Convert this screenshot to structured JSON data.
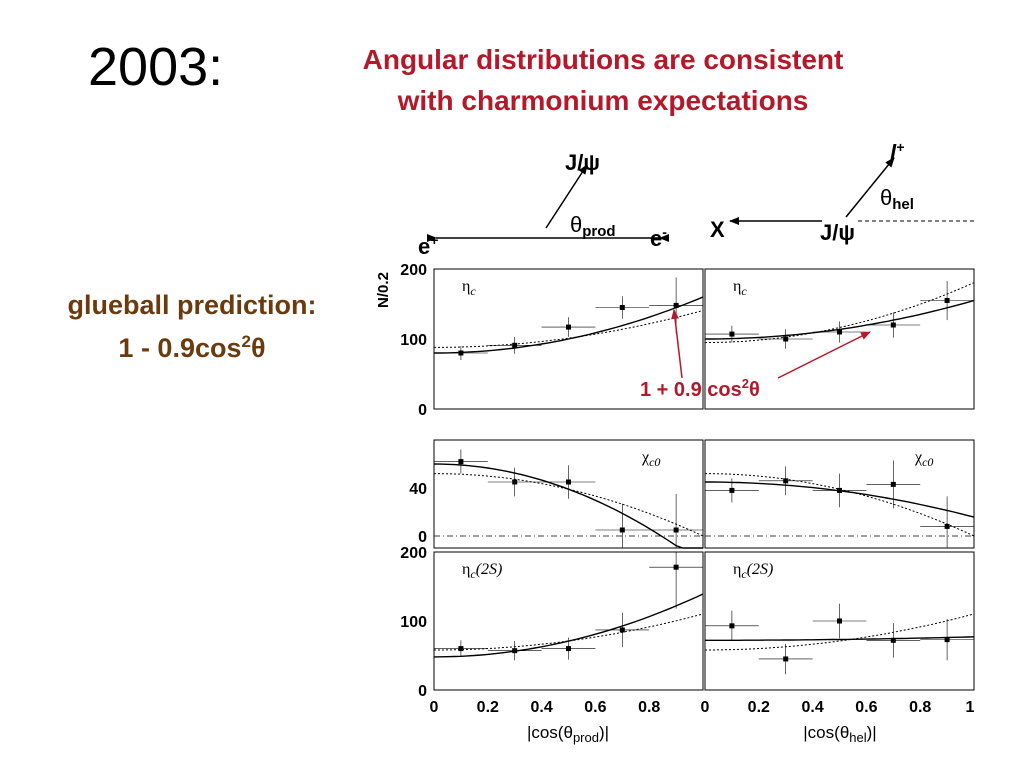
{
  "slide": {
    "year": "2003:",
    "heading_line1": "Angular distributions are consistent",
    "heading_line2": "with charmonium expectations",
    "glueball_line1": "glueball prediction:",
    "glueball_line2_prefix": "1 - 0.9cos",
    "glueball_line2_sup": "2",
    "glueball_line2_theta": "θ",
    "annotation_prefix": "1 + 0.9 cos",
    "annotation_sup": "2",
    "annotation_theta": "θ",
    "colors": {
      "heading": "#b3192a",
      "glueball": "#6b3b10",
      "annotation": "#b3192a"
    }
  },
  "diagrams": {
    "production": {
      "particle": "J/ψ",
      "angle": "θ",
      "angle_sub": "prod",
      "beam_left": "e",
      "beam_left_sup": "+",
      "beam_right": "e",
      "beam_right_sup": "-"
    },
    "helicity": {
      "lepton": "l",
      "lepton_sup": "+",
      "angle": "θ",
      "angle_sub": "hel",
      "left_particle": "X",
      "right_particle": "J/ψ"
    }
  },
  "chart_data": [
    {
      "type": "scatter",
      "row": 0,
      "col": 0,
      "label": "η",
      "label_sub": "c",
      "x": [
        0.1,
        0.3,
        0.5,
        0.7,
        0.9
      ],
      "values": [
        80,
        91,
        117,
        145,
        148
      ],
      "errors": [
        10,
        12,
        14,
        16,
        40
      ],
      "ylim": [
        0,
        200
      ],
      "solid_curve": {
        "a": 80,
        "b": 1.0
      },
      "dotted_curve": {
        "a": 88,
        "b": 0.6
      }
    },
    {
      "type": "scatter",
      "row": 0,
      "col": 1,
      "label": "η",
      "label_sub": "c",
      "x": [
        0.1,
        0.3,
        0.5,
        0.7,
        0.9
      ],
      "values": [
        107,
        100,
        110,
        120,
        155
      ],
      "errors": [
        12,
        14,
        15,
        18,
        28
      ],
      "ylim": [
        0,
        200
      ],
      "solid_curve": {
        "a": 100,
        "b": 0.55
      },
      "dotted_curve": {
        "a": 95,
        "b": 0.9
      }
    },
    {
      "type": "scatter",
      "row": 1,
      "col": 0,
      "label": "χ",
      "label_sub": "c0",
      "x": [
        0.1,
        0.3,
        0.5,
        0.7,
        0.9
      ],
      "values": [
        62,
        45,
        45,
        5,
        5
      ],
      "errors": [
        10,
        12,
        14,
        22,
        30
      ],
      "ylim": [
        -10,
        80
      ],
      "solid_curve": {
        "a": 60,
        "b": -1.4
      },
      "dotted_curve": {
        "a": 52,
        "b": -1.0
      }
    },
    {
      "type": "scatter",
      "row": 1,
      "col": 1,
      "label": "χ",
      "label_sub": "c0",
      "x": [
        0.1,
        0.3,
        0.5,
        0.7,
        0.9
      ],
      "values": [
        38,
        46,
        38,
        43,
        8
      ],
      "errors": [
        10,
        12,
        14,
        20,
        25
      ],
      "ylim": [
        -10,
        80
      ],
      "solid_curve": {
        "a": 45,
        "b": -0.65
      },
      "dotted_curve": {
        "a": 52,
        "b": -1.0
      }
    },
    {
      "type": "scatter",
      "row": 2,
      "col": 0,
      "label": "η",
      "label_sub": "c",
      "label_suffix": "(2S)",
      "x": [
        0.1,
        0.3,
        0.5,
        0.7,
        0.9
      ],
      "values": [
        60,
        57,
        60,
        87,
        178
      ],
      "errors": [
        12,
        14,
        16,
        25,
        60
      ],
      "ylim": [
        0,
        200
      ],
      "solid_curve": {
        "a": 48,
        "b": 1.9
      },
      "dotted_curve": {
        "a": 58,
        "b": 0.9
      }
    },
    {
      "type": "scatter",
      "row": 2,
      "col": 1,
      "label": "η",
      "label_sub": "c",
      "label_suffix": "(2S)",
      "x": [
        0.1,
        0.3,
        0.5,
        0.7,
        0.9
      ],
      "values": [
        93,
        45,
        100,
        72,
        73
      ],
      "errors": [
        22,
        22,
        25,
        25,
        30
      ],
      "ylim": [
        0,
        200
      ],
      "solid_curve": {
        "a": 72,
        "b": 0.07
      },
      "dotted_curve": {
        "a": 58,
        "b": 0.9
      }
    }
  ],
  "axes": {
    "ylabel": "N/0.2",
    "xlabel_left_prefix": "|cos(",
    "xlabel_left_theta": "θ",
    "xlabel_left_sub": "prod",
    "xlabel_left_suffix": ")|",
    "xlabel_right_prefix": "|cos(",
    "xlabel_right_theta": "θ",
    "xlabel_right_sub": "hel",
    "xlabel_right_suffix": ")|",
    "xticks_left": [
      "0",
      "0.2",
      "0.4",
      "0.6",
      "0.8"
    ],
    "xticks_right": [
      "0",
      "0.2",
      "0.4",
      "0.6",
      "0.8",
      "1"
    ],
    "yticks_row0": [
      "0",
      "100",
      "200"
    ],
    "yticks_row1": [
      "0",
      "40"
    ],
    "yticks_row2": [
      "0",
      "100",
      "200"
    ]
  }
}
